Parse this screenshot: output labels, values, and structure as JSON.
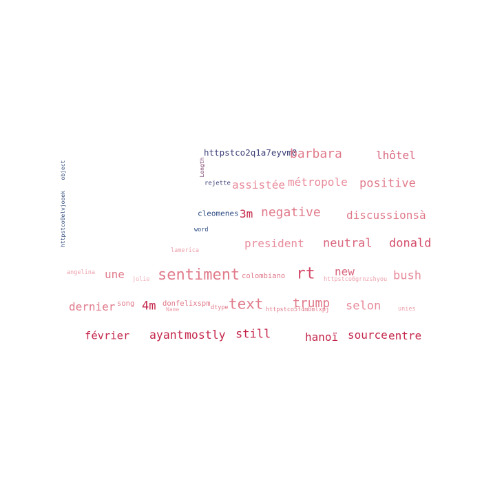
{
  "words": [
    {
      "text": "httpstco2q1a7eyvm0",
      "color": "#3b3f75"
    },
    {
      "text": "barbara",
      "color": "#e07a8a"
    },
    {
      "text": "lhôtel",
      "color": "#d9657d"
    },
    {
      "text": "Length",
      "color": "#7a3e6a"
    },
    {
      "text": "object",
      "color": "#2f4a7a"
    },
    {
      "text": "httpstco0elvjooek",
      "color": "#2f4a7a"
    },
    {
      "text": "rejette",
      "color": "#3b3f75"
    },
    {
      "text": "assistée",
      "color": "#e88a9a"
    },
    {
      "text": "métropole",
      "color": "#e88a9a"
    },
    {
      "text": "positive",
      "color": "#e07a8a"
    },
    {
      "text": "cleomenes",
      "color": "#2c4b82"
    },
    {
      "text": "3m",
      "color": "#c4264a"
    },
    {
      "text": "negative",
      "color": "#e07a8a"
    },
    {
      "text": "discussionsà",
      "color": "#e07a8a"
    },
    {
      "text": "word",
      "color": "#2c4b82"
    },
    {
      "text": "president",
      "color": "#e88a9a"
    },
    {
      "text": "neutral",
      "color": "#d9657d"
    },
    {
      "text": "donald",
      "color": "#d44c6a"
    },
    {
      "text": "lamerica",
      "color": "#eca0ac"
    },
    {
      "text": "angelina",
      "color": "#eca0ac"
    },
    {
      "text": "une",
      "color": "#e07a8a"
    },
    {
      "text": "jolie",
      "color": "#f0b0bb"
    },
    {
      "text": "sentiment",
      "color": "#e07a8a"
    },
    {
      "text": "colombiano",
      "color": "#e07a8a"
    },
    {
      "text": "rt",
      "color": "#d44c6a"
    },
    {
      "text": "new",
      "color": "#d9657d"
    },
    {
      "text": "httpstco6grnzshyou",
      "color": "#eca0ac"
    },
    {
      "text": "bush",
      "color": "#e88a9a"
    },
    {
      "text": "dernier",
      "color": "#e07a8a"
    },
    {
      "text": "song",
      "color": "#e07a8a"
    },
    {
      "text": "4m",
      "color": "#c4264a"
    },
    {
      "text": "donfelixspm",
      "color": "#e07a8a"
    },
    {
      "text": "Name",
      "color": "#eca0ac"
    },
    {
      "text": "dtype",
      "color": "#e07a8a"
    },
    {
      "text": "text",
      "color": "#e07a8a"
    },
    {
      "text": "trump",
      "color": "#e07a8a"
    },
    {
      "text": "httpstco5f4mbmlxpj",
      "color": "#e07a8a"
    },
    {
      "text": "selon",
      "color": "#e88a9a"
    },
    {
      "text": "unies",
      "color": "#eca0ac"
    },
    {
      "text": "février",
      "color": "#c4264a"
    },
    {
      "text": "ayant",
      "color": "#c4264a"
    },
    {
      "text": "mostly",
      "color": "#c4264a"
    },
    {
      "text": "still",
      "color": "#c4264a"
    },
    {
      "text": "hanoï",
      "color": "#c4264a"
    },
    {
      "text": "source",
      "color": "#c4264a"
    },
    {
      "text": "entre",
      "color": "#c4264a"
    }
  ]
}
